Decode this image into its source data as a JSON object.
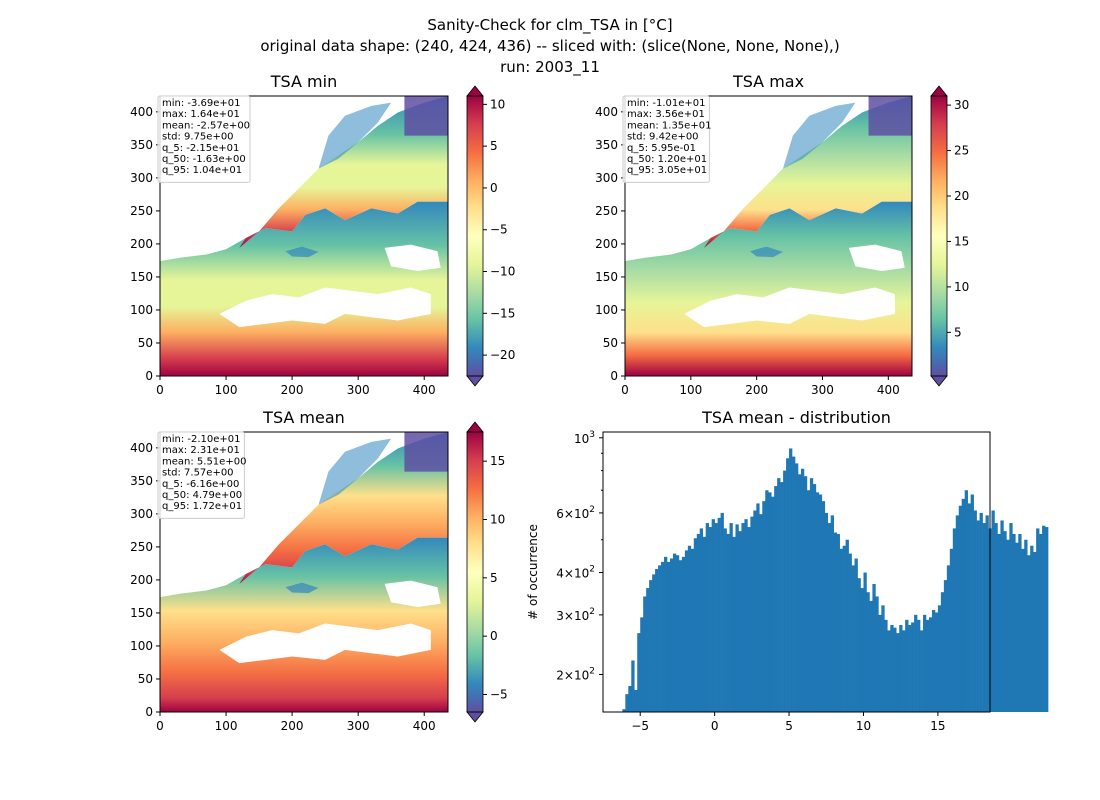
{
  "figure": {
    "title_line1": "Sanity-Check for clm_TSA in [°C]",
    "title_line2": "original data shape: (240, 424, 436) -- sliced with: (slice(None, None, None),)",
    "title_line3": "run: 2003_11"
  },
  "colors": {
    "spectral_r": [
      "#5e4fa2",
      "#3288bd",
      "#66c2a5",
      "#abdda4",
      "#e6f598",
      "#ffffbf",
      "#fee08b",
      "#fdae61",
      "#f46d43",
      "#d53e4f",
      "#9e0142"
    ],
    "histogram_bar": "#1f77b4",
    "stats_box_border": "#cccccc"
  },
  "chart_data": [
    {
      "type": "heatmap",
      "title": "TSA min",
      "xlim": [
        0,
        436
      ],
      "ylim": [
        0,
        424
      ],
      "xticks": [
        0,
        100,
        200,
        300,
        400
      ],
      "yticks": [
        0,
        50,
        100,
        150,
        200,
        250,
        300,
        350,
        400
      ],
      "colorbar": {
        "vmin": -22.5,
        "vmax": 11.0,
        "ticks": [
          -20,
          -15,
          -10,
          -5,
          0,
          5,
          10
        ],
        "tick_labels": [
          "−20",
          "−15",
          "−10",
          "−5",
          "0",
          "5",
          "10"
        ],
        "colormap": "Spectral_r"
      },
      "stats": [
        "min: -3.69e+01",
        "max: 1.64e+01",
        "mean: -2.57e+00",
        "std: 9.75e+00",
        "q_5: -2.15e+01",
        "q_50: -1.63e+00",
        "q_95: 1.04e+01"
      ]
    },
    {
      "type": "heatmap",
      "title": "TSA max",
      "xlim": [
        0,
        436
      ],
      "ylim": [
        0,
        424
      ],
      "xticks": [
        0,
        100,
        200,
        300,
        400
      ],
      "yticks": [
        0,
        50,
        100,
        150,
        200,
        250,
        300,
        350,
        400
      ],
      "colorbar": {
        "vmin": 0.2,
        "vmax": 31.0,
        "ticks": [
          5,
          10,
          15,
          20,
          25,
          30
        ],
        "tick_labels": [
          "5",
          "10",
          "15",
          "20",
          "25",
          "30"
        ],
        "colormap": "Spectral_r"
      },
      "stats": [
        "min: -1.01e+01",
        "max: 3.56e+01",
        "mean: 1.35e+01",
        "std: 9.42e+00",
        "q_5: 5.95e-01",
        "q_50: 1.20e+01",
        "q_95: 3.05e+01"
      ]
    },
    {
      "type": "heatmap",
      "title": "TSA mean",
      "xlim": [
        0,
        436
      ],
      "ylim": [
        0,
        424
      ],
      "xticks": [
        0,
        100,
        200,
        300,
        400
      ],
      "yticks": [
        0,
        50,
        100,
        150,
        200,
        250,
        300,
        350,
        400
      ],
      "colorbar": {
        "vmin": -6.5,
        "vmax": 17.5,
        "ticks": [
          -5,
          0,
          5,
          10,
          15
        ],
        "tick_labels": [
          "−5",
          "0",
          "5",
          "10",
          "15"
        ],
        "colormap": "Spectral_r"
      },
      "stats": [
        "min: -2.10e+01",
        "max: 2.31e+01",
        "mean: 5.51e+00",
        "std: 7.57e+00",
        "q_5: -6.16e+00",
        "q_50: 4.79e+00",
        "q_95: 1.72e+01"
      ]
    },
    {
      "type": "bar",
      "title": "TSA mean - distribution",
      "ylabel": "# of occurrence",
      "y_scale": "log",
      "xlim": [
        -7.5,
        18.5
      ],
      "ylim": [
        155,
        1040
      ],
      "xticks": [
        -5,
        0,
        5,
        10,
        15
      ],
      "xtick_labels": [
        "−5",
        "0",
        "5",
        "10",
        "15"
      ],
      "yticks": [
        200,
        300,
        400,
        600,
        1000
      ],
      "ytick_bases": [
        "2 × 10",
        "3 × 10",
        "4 × 10",
        "6 × 10",
        "10"
      ],
      "ytick_exps": [
        "2",
        "2",
        "2",
        "2",
        "3"
      ],
      "bin_start": -6.2,
      "bin_width": 0.2,
      "values": [
        158,
        175,
        185,
        220,
        180,
        265,
        295,
        340,
        360,
        380,
        395,
        410,
        420,
        430,
        445,
        430,
        440,
        455,
        450,
        435,
        445,
        465,
        480,
        470,
        505,
        520,
        540,
        510,
        560,
        545,
        575,
        560,
        580,
        600,
        540,
        520,
        560,
        510,
        555,
        530,
        560,
        575,
        545,
        585,
        610,
        640,
        595,
        650,
        700,
        690,
        670,
        720,
        760,
        740,
        800,
        870,
        930,
        880,
        840,
        780,
        810,
        770,
        700,
        760,
        730,
        690,
        680,
        650,
        600,
        560,
        590,
        525,
        520,
        470,
        480,
        500,
        455,
        420,
        440,
        385,
        360,
        400,
        350,
        330,
        370,
        340,
        300,
        320,
        290,
        270,
        280,
        275,
        265,
        280,
        270,
        290,
        280,
        285,
        300,
        290,
        270,
        300,
        290,
        295,
        310,
        305,
        320,
        350,
        380,
        420,
        470,
        540,
        590,
        630,
        660,
        700,
        640,
        680,
        610,
        570,
        600,
        560,
        590,
        540,
        610,
        560,
        520,
        570,
        530,
        500,
        560,
        520,
        490,
        520,
        470,
        500,
        450,
        480,
        460,
        540,
        520,
        550,
        545
      ]
    }
  ]
}
